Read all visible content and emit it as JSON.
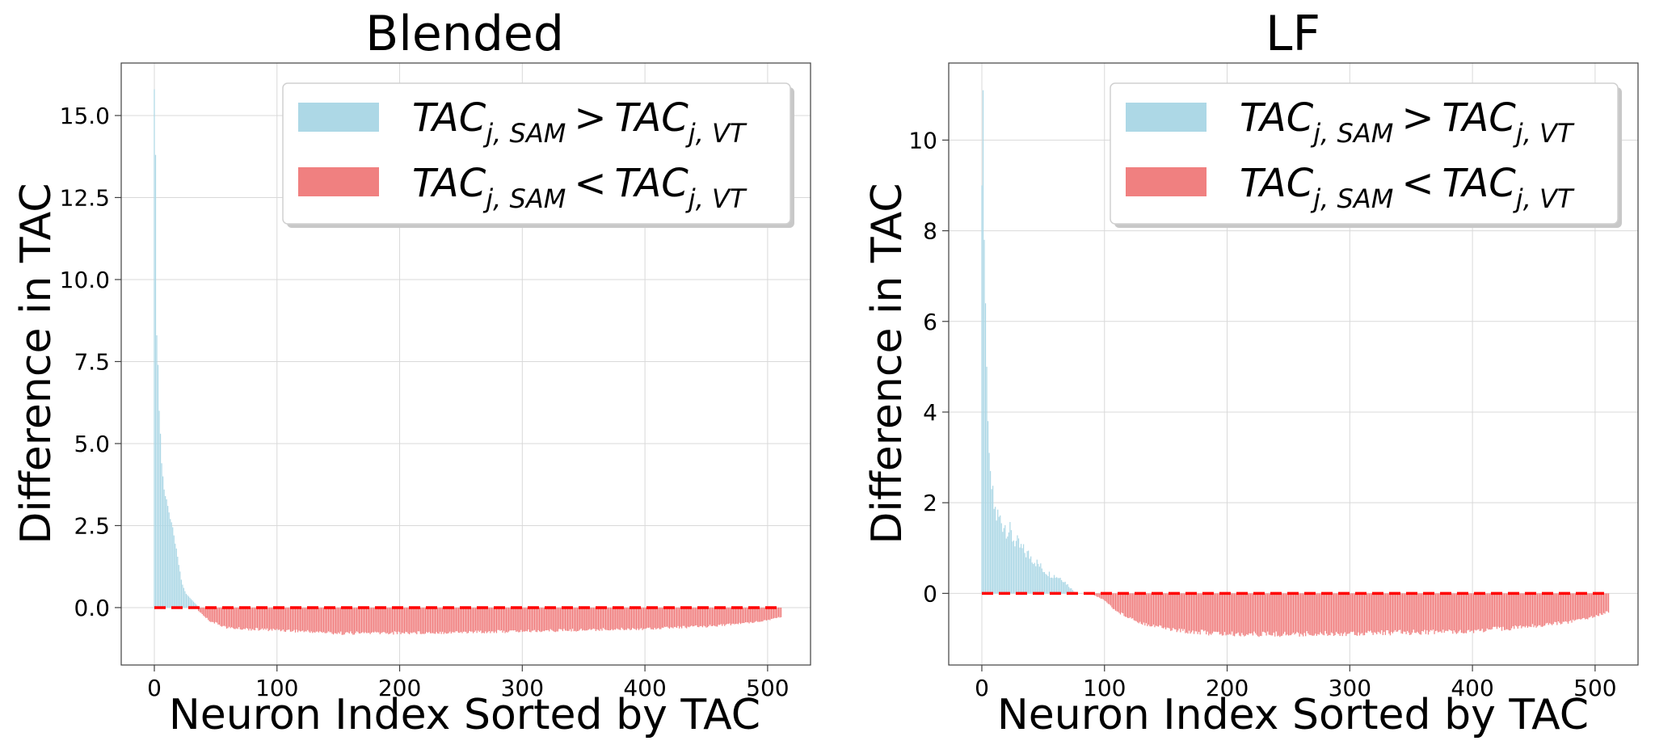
{
  "colors": {
    "positive": "#add8e6",
    "negative": "#f08080",
    "zero_line": "#ff0000",
    "grid": "#d9d9d9",
    "axes": "#404040"
  },
  "chart_data": [
    {
      "type": "bar",
      "title": "Blended",
      "xlabel": "Neuron Index Sorted by TAC",
      "ylabel": "Difference in TAC",
      "xlim": [
        -27,
        535
      ],
      "ylim": [
        -1.75,
        16.6
      ],
      "xticks": [
        0,
        100,
        200,
        300,
        400,
        500
      ],
      "xtick_labels": [
        "0",
        "100",
        "200",
        "300",
        "400",
        "500"
      ],
      "yticks": [
        0,
        2.5,
        5,
        7.5,
        10,
        12.5,
        15
      ],
      "ytick_labels": [
        "0.0",
        "2.5",
        "5.0",
        "7.5",
        "10.0",
        "12.5",
        "15.0"
      ],
      "grid": true,
      "n_neurons": 512,
      "legend": {
        "placement": "top-right",
        "entries": [
          {
            "lhs": "TAC",
            "lhs_sub": "j, SAM",
            "op": ">",
            "rhs": "TAC",
            "rhs_sub": "j, VT",
            "color_key": "positive"
          },
          {
            "lhs": "TAC",
            "lhs_sub": "j, SAM",
            "op": "<",
            "rhs": "TAC",
            "rhs_sub": "j, VT",
            "color_key": "negative"
          }
        ]
      },
      "zero_line": {
        "y": 0,
        "x_range": [
          0,
          511
        ],
        "style": "dashed"
      },
      "positive_series": {
        "name": "TAC_{j,SAM} > TAC_{j,VT}",
        "x": [
          0,
          1,
          2,
          3,
          4,
          5,
          6,
          7,
          8,
          9,
          10,
          11,
          12,
          13,
          14,
          15,
          16,
          17,
          18,
          19,
          20,
          21,
          22,
          23,
          24,
          25,
          26,
          27,
          28,
          29,
          30,
          31,
          32,
          33,
          34,
          35
        ],
        "values": [
          15.8,
          13.8,
          8.3,
          7.4,
          6.0,
          5.3,
          4.4,
          4.0,
          3.6,
          3.4,
          3.3,
          3.1,
          2.9,
          2.7,
          2.6,
          2.45,
          2.2,
          1.95,
          1.8,
          1.55,
          1.3,
          1.1,
          0.85,
          0.7,
          0.6,
          0.5,
          0.42,
          0.38,
          0.34,
          0.3,
          0.26,
          0.22,
          0.18,
          0.14,
          0.1,
          0.06
        ]
      },
      "negative_series": {
        "name": "TAC_{j,SAM} < TAC_{j,VT}",
        "x_range": [
          36,
          511
        ],
        "profile_x": [
          36,
          45,
          60,
          80,
          100,
          120,
          150,
          200,
          250,
          300,
          350,
          400,
          450,
          480,
          500,
          511
        ],
        "profile_values": [
          -0.1,
          -0.4,
          -0.62,
          -0.66,
          -0.68,
          -0.72,
          -0.78,
          -0.77,
          -0.75,
          -0.72,
          -0.68,
          -0.64,
          -0.57,
          -0.48,
          -0.38,
          -0.28
        ]
      }
    },
    {
      "type": "bar",
      "title": "LF",
      "xlabel": "Neuron Index Sorted by TAC",
      "ylabel": "Difference in TAC",
      "xlim": [
        -27,
        535
      ],
      "ylim": [
        -1.58,
        11.7
      ],
      "xticks": [
        0,
        100,
        200,
        300,
        400,
        500
      ],
      "xtick_labels": [
        "0",
        "100",
        "200",
        "300",
        "400",
        "500"
      ],
      "yticks": [
        0,
        2,
        4,
        6,
        8,
        10
      ],
      "ytick_labels": [
        "0",
        "2",
        "4",
        "6",
        "8",
        "10"
      ],
      "grid": true,
      "n_neurons": 512,
      "legend": {
        "placement": "top-right",
        "entries": [
          {
            "lhs": "TAC",
            "lhs_sub": "j, SAM",
            "op": ">",
            "rhs": "TAC",
            "rhs_sub": "j, VT",
            "color_key": "positive"
          },
          {
            "lhs": "TAC",
            "lhs_sub": "j, SAM",
            "op": "<",
            "rhs": "TAC",
            "rhs_sub": "j, VT",
            "color_key": "negative"
          }
        ]
      },
      "zero_line": {
        "y": 0,
        "x_range": [
          0,
          511
        ],
        "style": "dashed"
      },
      "positive_series": {
        "name": "TAC_{j,SAM} > TAC_{j,VT}",
        "profile_x": [
          0,
          1,
          2,
          3,
          4,
          5,
          6,
          8,
          10,
          12,
          15,
          20,
          25,
          30,
          35,
          40,
          45,
          50,
          55,
          60,
          65,
          70,
          75
        ],
        "profile_values": [
          9.0,
          11.1,
          7.8,
          6.4,
          5.0,
          3.8,
          3.1,
          2.3,
          2.0,
          1.8,
          1.7,
          1.55,
          1.3,
          1.1,
          0.95,
          0.85,
          0.7,
          0.55,
          0.45,
          0.4,
          0.35,
          0.2,
          0.05
        ],
        "x_range": [
          0,
          75
        ]
      },
      "negative_series": {
        "name": "TAC_{j,SAM} < TAC_{j,VT}",
        "x_range": [
          90,
          511
        ],
        "profile_x": [
          90,
          100,
          110,
          130,
          160,
          200,
          250,
          300,
          350,
          400,
          450,
          480,
          500,
          511
        ],
        "profile_values": [
          -0.02,
          -0.15,
          -0.4,
          -0.65,
          -0.82,
          -0.9,
          -0.9,
          -0.88,
          -0.86,
          -0.83,
          -0.72,
          -0.62,
          -0.5,
          -0.4
        ]
      }
    }
  ]
}
